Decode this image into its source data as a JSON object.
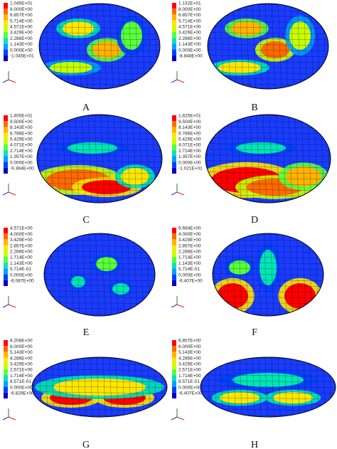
{
  "panels": [
    {
      "label": "A",
      "legend": [
        "1.045E+01",
        "8.000E+00",
        "6.857E+00",
        "5.714E+00",
        "4.571E+00",
        "3.429E+00",
        "2.286E+00",
        "1.143E+00",
        "0.000E+00",
        "-1.045E+01"
      ]
    },
    {
      "label": "B",
      "legend": [
        "1.132E+01",
        "8.000E+00",
        "6.857E+00",
        "5.714E+00",
        "4.571E+00",
        "3.429E+00",
        "2.286E+00",
        "1.143E+00",
        "0.000E+00",
        "-8.848E+00"
      ]
    },
    {
      "label": "C",
      "legend": [
        "1.405E+01",
        "9.500E+00",
        "8.143E+00",
        "6.786E+00",
        "5.429E+00",
        "4.071E+00",
        "2.714E+00",
        "1.357E+00",
        "0.000E+00",
        "-9.384E+00"
      ]
    },
    {
      "label": "D",
      "legend": [
        "1.825E+01",
        "9.500E+00",
        "8.143E+00",
        "6.786E+00",
        "5.429E+00",
        "4.071E+00",
        "2.714E+00",
        "1.357E+00",
        "0.000E+00",
        "-1.021E+01"
      ]
    },
    {
      "label": "E",
      "legend": [
        "4.571E+00",
        "4.000E+00",
        "3.429E+00",
        "2.857E+00",
        "2.286E+00",
        "1.714E+00",
        "1.143E+00",
        "5.714E-01",
        "0.000E+00",
        "-6.087E+00"
      ]
    },
    {
      "label": "F",
      "legend": [
        "6.684E+00",
        "4.000E+00",
        "3.429E+00",
        "2.857E+00",
        "2.286E+00",
        "1.714E+00",
        "1.143E+00",
        "5.714E-01",
        "0.000E+00",
        "-6.407E+00"
      ]
    },
    {
      "label": "G",
      "legend": [
        "8.208E+00",
        "6.000E+00",
        "5.143E+00",
        "4.286E+00",
        "3.429E+00",
        "2.571E+00",
        "1.714E+00",
        "8.571E-01",
        "0.000E+00",
        "-6.829E+00"
      ]
    },
    {
      "label": "H",
      "legend": [
        "6.857E+00",
        "6.000E+00",
        "5.143E+00",
        "4.286E+00",
        "3.429E+00",
        "2.571E+00",
        "1.714E+00",
        "8.571E-01",
        "0.000E+00",
        "-6.407E+00"
      ]
    }
  ]
}
